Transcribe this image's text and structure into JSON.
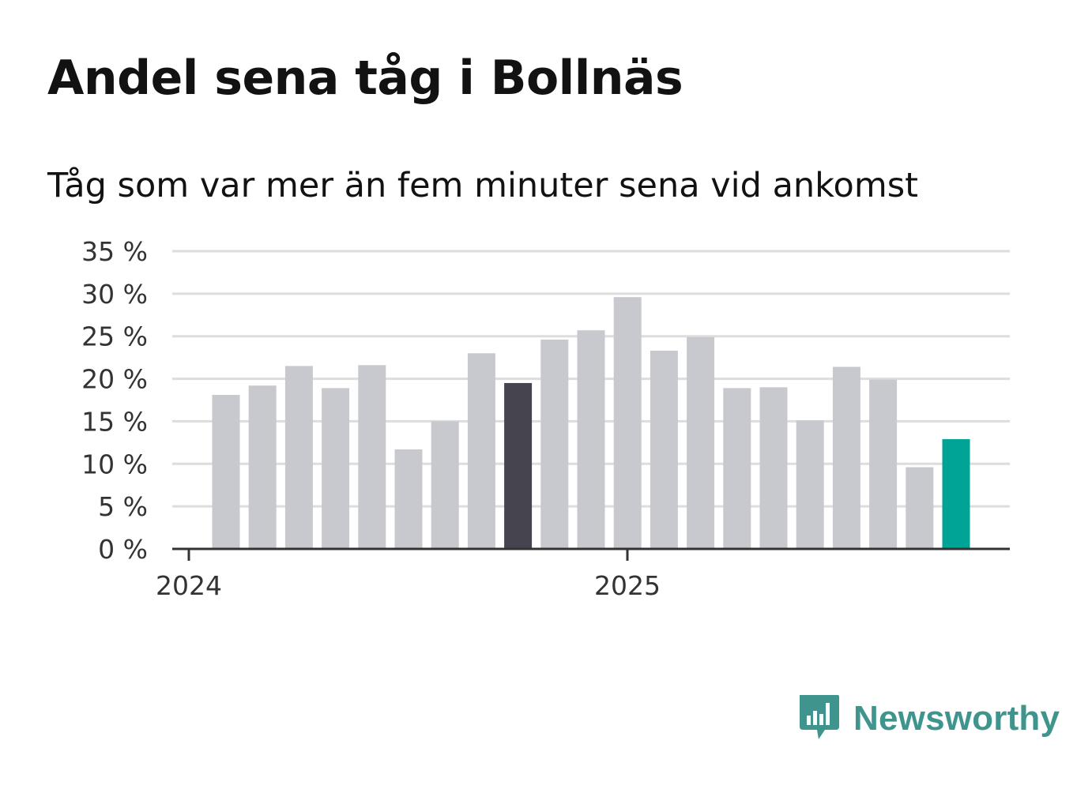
{
  "title": "Andel sena tåg i Bollnäs",
  "subtitle": "Tåg som var mer än fem minuter sena vid ankomst",
  "logo": {
    "text": "Newsworthy",
    "icon": "newsworthy-chart-bubble-icon"
  },
  "colors": {
    "bar": "#c8c8cf",
    "highlight_previous_year": "#46454f",
    "highlight_latest": "#00a497",
    "grid": "#dddddd",
    "axis": "#333333",
    "brand": "#3f958e"
  },
  "chart_data": {
    "type": "bar",
    "unit": "%",
    "ylim": [
      0,
      35
    ],
    "yticks": [
      0,
      5,
      10,
      15,
      20,
      25,
      30,
      35
    ],
    "ytick_labels": [
      "0 %",
      "5 %",
      "10 %",
      "15 %",
      "20 %",
      "25 %",
      "30 %",
      "35 %"
    ],
    "xtick_labels": [
      "2024",
      "2025"
    ],
    "grid": true,
    "values": [
      18.1,
      19.2,
      21.5,
      18.9,
      21.6,
      11.7,
      15.0,
      23.0,
      19.5,
      24.6,
      25.7,
      29.6,
      23.3,
      24.9,
      18.9,
      19.0,
      15.1,
      21.4,
      19.9,
      9.6,
      12.9
    ],
    "highlight": {
      "previous_year_index": 8,
      "latest_index": 20
    }
  }
}
